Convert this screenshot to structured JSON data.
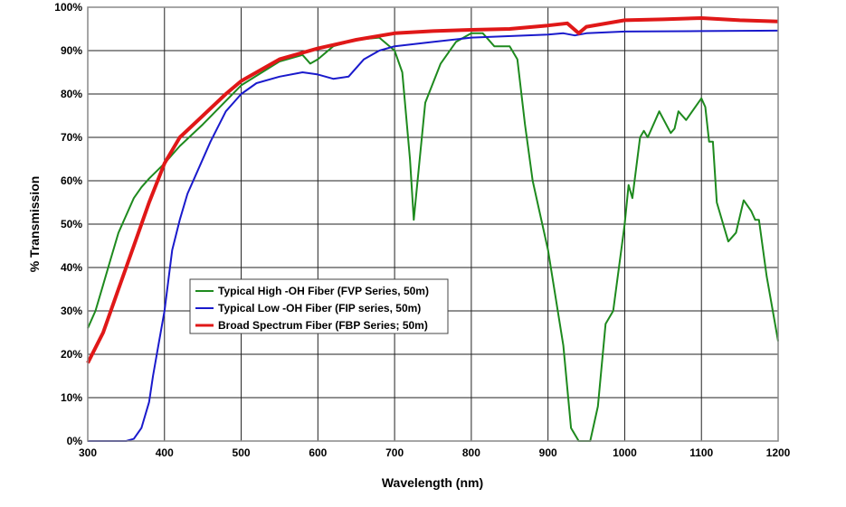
{
  "chart_data": {
    "type": "line",
    "title": "",
    "xlabel": "Wavelength (nm)",
    "ylabel": "% Transmission",
    "xlim": [
      300,
      1200
    ],
    "ylim": [
      0,
      100
    ],
    "x_ticks": [
      "300",
      "400",
      "500",
      "600",
      "700",
      "800",
      "900",
      "1000",
      "1100",
      "1200"
    ],
    "y_ticks": [
      "0%",
      "10%",
      "20%",
      "30%",
      "40%",
      "50%",
      "60%",
      "70%",
      "80%",
      "90%",
      "100%"
    ],
    "grid": true,
    "legend_position": "center-left",
    "series": [
      {
        "name": "Typical High -OH Fiber (FVP Series, 50m)",
        "color": "#1e8a1e",
        "x": [
          300,
          310,
          320,
          330,
          340,
          350,
          360,
          370,
          380,
          400,
          420,
          450,
          500,
          550,
          580,
          590,
          600,
          620,
          650,
          680,
          690,
          700,
          710,
          720,
          725,
          730,
          740,
          760,
          780,
          800,
          815,
          830,
          850,
          860,
          870,
          880,
          900,
          920,
          930,
          940,
          955,
          965,
          975,
          985,
          1000,
          1005,
          1010,
          1020,
          1025,
          1030,
          1045,
          1060,
          1065,
          1070,
          1080,
          1100,
          1105,
          1110,
          1115,
          1120,
          1135,
          1145,
          1155,
          1165,
          1170,
          1175,
          1185,
          1200
        ],
        "y": [
          26,
          30,
          36,
          42,
          48,
          52,
          56,
          58.5,
          60.5,
          64,
          68,
          73,
          82,
          87.5,
          89,
          87,
          88,
          91,
          92.5,
          93,
          91.5,
          90,
          85,
          65,
          51,
          60,
          78,
          87,
          92,
          94,
          94,
          91,
          91,
          88,
          73,
          60,
          44,
          22,
          3,
          0,
          0,
          8,
          27,
          30,
          50,
          59,
          56,
          70,
          71.5,
          70,
          76,
          71,
          72,
          76,
          74,
          79,
          77,
          69,
          69,
          55,
          46,
          48,
          55.5,
          53,
          51,
          51,
          38,
          23
        ]
      },
      {
        "name": "Typical Low -OH Fiber (FIP series, 50m)",
        "color": "#1a1acc",
        "x": [
          300,
          350,
          360,
          370,
          380,
          385,
          390,
          400,
          410,
          420,
          430,
          440,
          460,
          480,
          500,
          520,
          550,
          580,
          600,
          620,
          640,
          660,
          680,
          700,
          750,
          800,
          900,
          920,
          935,
          950,
          1000,
          1100,
          1200
        ],
        "y": [
          0,
          0,
          0.5,
          3,
          9,
          15,
          20,
          30,
          44,
          51,
          57,
          61,
          69,
          76,
          80,
          82.5,
          84,
          85,
          84.5,
          83.5,
          84,
          88,
          90,
          91,
          92,
          93,
          93.7,
          94,
          93.5,
          94,
          94.4,
          94.5,
          94.6
        ]
      },
      {
        "name": "Broad Spectrum Fiber (FBP Series; 50m)",
        "color": "#e01818",
        "x": [
          300,
          320,
          340,
          360,
          380,
          400,
          420,
          450,
          480,
          500,
          550,
          600,
          650,
          700,
          750,
          800,
          850,
          900,
          925,
          940,
          950,
          1000,
          1050,
          1100,
          1150,
          1200
        ],
        "y": [
          18,
          25,
          35,
          45,
          55,
          64,
          70,
          75,
          80,
          83,
          88,
          90.5,
          92.5,
          94,
          94.5,
          94.8,
          95,
          95.8,
          96.3,
          94,
          95.5,
          97,
          97.2,
          97.5,
          97,
          96.7
        ]
      }
    ]
  }
}
